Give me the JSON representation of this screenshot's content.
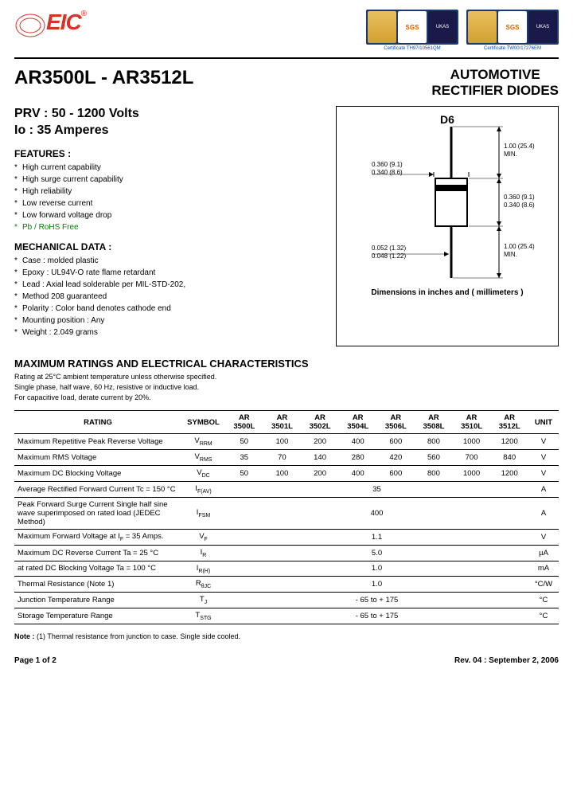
{
  "header": {
    "logo_text": "EIC",
    "logo_r": "®",
    "cert1_label": "Certificate TH97/10561QM",
    "cert2_label": "Certificate TW00/17276EM",
    "sgs": "SGS",
    "ukas": "UKAS"
  },
  "title": {
    "part": "AR3500L - AR3512L",
    "product_line1": "AUTOMOTIVE",
    "product_line2": "RECTIFIER DIODES"
  },
  "specs": {
    "prv": "PRV : 50 - 1200 Volts",
    "io": "Io : 35 Amperes"
  },
  "features": {
    "heading": "FEATURES :",
    "items": [
      "High current capability",
      "High surge current capability",
      "High reliability",
      "Low reverse current",
      "Low forward voltage drop"
    ],
    "rohs": "Pb / RoHS Free"
  },
  "mechanical": {
    "heading": "MECHANICAL  DATA :",
    "items": [
      "Case : molded plastic",
      "Epoxy : UL94V-O rate flame retardant",
      "Lead : Axial lead solderable per MIL-STD-202,",
      "           Method 208 guaranteed",
      "Polarity : Color band denotes cathode end",
      "Mounting  position : Any",
      "Weight :    2.049  grams"
    ]
  },
  "diagram": {
    "label": "D6",
    "dim_lead": "0.360 (9.1)\n0.340 (8.6)",
    "dim_body_len": "0.360 (9.1)\n0.340 (8.6)",
    "dim_lead_dia": "0.052 (1.32)\n0.048 (1.22)",
    "dim_min1": "1.00 (25.4)\nMIN.",
    "dim_min2": "1.00 (25.4)\nMIN.",
    "caption": "Dimensions in inches and ( millimeters )"
  },
  "ratings": {
    "title": "MAXIMUM RATINGS AND ELECTRICAL CHARACTERISTICS",
    "note1": "Rating at 25°C ambient temperature unless otherwise specified.",
    "note2": "Single phase, half wave, 60 Hz, resistive or inductive load.",
    "note3": "For capacitive load, derate current by 20%.",
    "headers": [
      "RATING",
      "SYMBOL",
      "AR 3500L",
      "AR 3501L",
      "AR 3502L",
      "AR 3504L",
      "AR 3506L",
      "AR 3508L",
      "AR 3510L",
      "AR 3512L",
      "UNIT"
    ],
    "rows": [
      {
        "rating": "Maximum Repetitive Peak Reverse Voltage",
        "sym": "V",
        "sub": "RRM",
        "vals": [
          "50",
          "100",
          "200",
          "400",
          "600",
          "800",
          "1000",
          "1200"
        ],
        "unit": "V"
      },
      {
        "rating": "Maximum RMS Voltage",
        "sym": "V",
        "sub": "RMS",
        "vals": [
          "35",
          "70",
          "140",
          "280",
          "420",
          "560",
          "700",
          "840"
        ],
        "unit": "V"
      },
      {
        "rating": "Maximum DC Blocking Voltage",
        "sym": "V",
        "sub": "DC",
        "vals": [
          "50",
          "100",
          "200",
          "400",
          "600",
          "800",
          "1000",
          "1200"
        ],
        "unit": "V"
      },
      {
        "rating": "Average Rectified Forward Current  Tc = 150 °C",
        "sym": "I",
        "sub": "F(AV)",
        "span": "35",
        "unit": "A"
      },
      {
        "rating": "Peak Forward Surge Current Single half sine wave superimposed on rated load (JEDEC Method)",
        "sym": "I",
        "sub": "FSM",
        "span": "400",
        "unit": "A"
      },
      {
        "rating": "Maximum Forward Voltage at I",
        "rating_sub": "F",
        "rating_tail": " = 35 Amps.",
        "sym": "V",
        "sub": "F",
        "span": "1.1",
        "unit": "V"
      },
      {
        "rating": "Maximum DC Reverse Current       Ta = 25 °C",
        "sym": "I",
        "sub": "R",
        "span": "5.0",
        "unit": "µA"
      },
      {
        "rating": "at rated DC Blocking Voltage        Ta = 100 °C",
        "sym": "I",
        "sub": "R(H)",
        "span": "1.0",
        "unit": "mA"
      },
      {
        "rating": "Thermal Resistance (Note 1)",
        "sym": "R",
        "sub": "θJC",
        "span": "1.0",
        "unit": "°C/W"
      },
      {
        "rating": "Junction Temperature Range",
        "sym": "T",
        "sub": "J",
        "span": "- 65 to + 175",
        "unit": "°C"
      },
      {
        "rating": "Storage Temperature Range",
        "sym": "T",
        "sub": "STG",
        "span": "- 65 to + 175",
        "unit": "°C"
      }
    ]
  },
  "note": "Note : (1) Thermal resistance from junction to case. Single side cooled.",
  "footer": {
    "page": "Page 1 of 2",
    "rev": "Rev. 04 : September 2, 2006"
  }
}
